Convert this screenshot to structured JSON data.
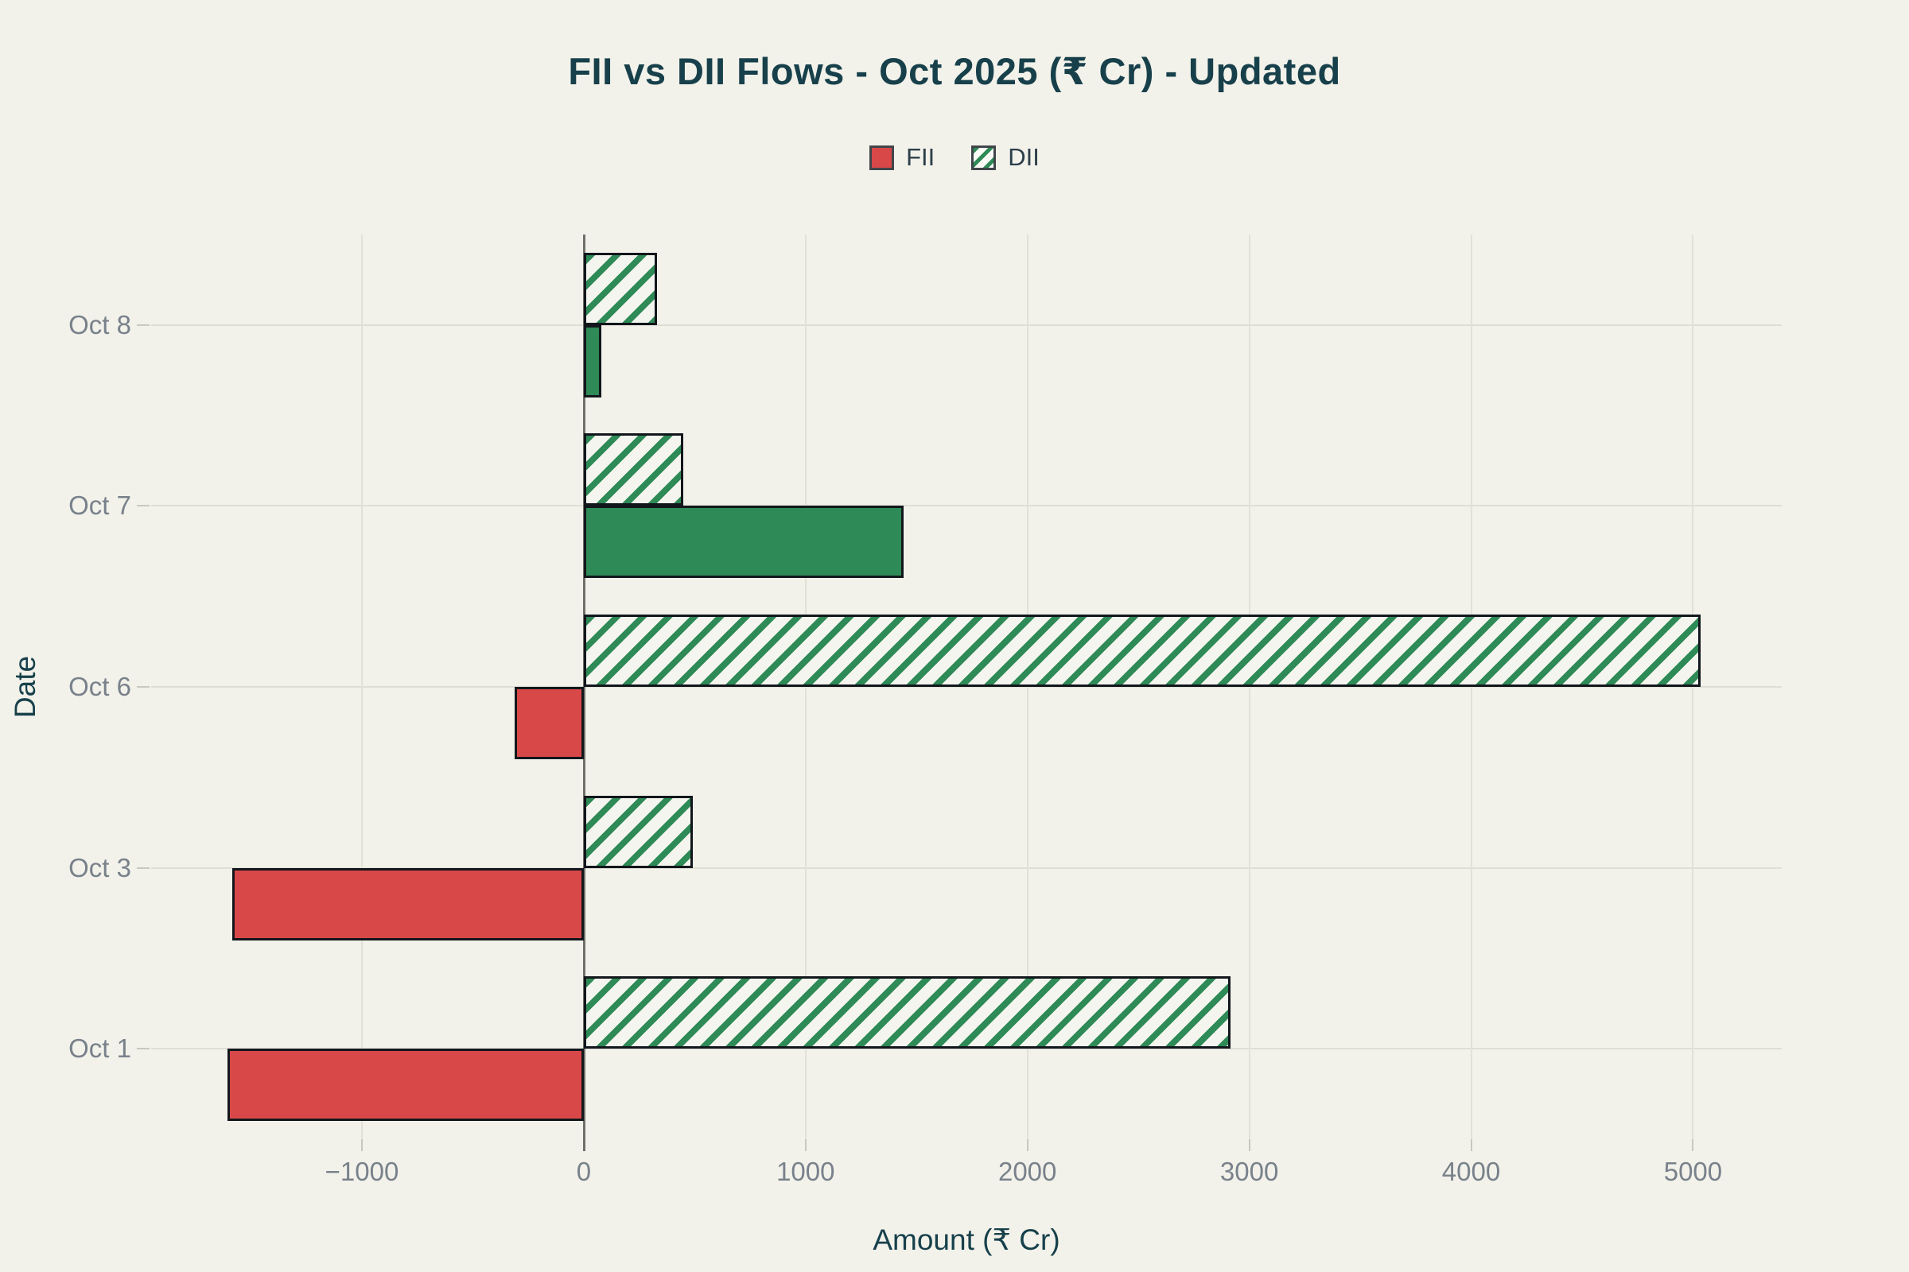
{
  "header": {
    "title": "FII vs DII Flows - Oct 2025 (₹ Cr) - Updated"
  },
  "chart_data": {
    "type": "bar",
    "orientation": "horizontal",
    "title": "FII vs DII Flows - Oct 2025 (₹ Cr) - Updated",
    "xlabel": "Amount (₹ Cr)",
    "ylabel": "Date",
    "categories": [
      "Oct 1",
      "Oct 3",
      "Oct 6",
      "Oct 7",
      "Oct 8"
    ],
    "series": [
      {
        "name": "FII",
        "values": [
          -1605,
          -1585,
          -312,
          1440,
          80
        ]
      },
      {
        "name": "DII",
        "values": [
          2915,
          490,
          5035,
          450,
          330
        ]
      }
    ],
    "xticks": [
      -1000,
      0,
      1000,
      2000,
      3000,
      4000,
      5000
    ],
    "xlim": [
      -1950,
      5400
    ],
    "grid": true,
    "legend_position": "top-center",
    "style_notes": {
      "fii_negative_color": "#d94848",
      "fii_positive_color": "#2e8a56",
      "dii_hatch_color": "#2e8a56",
      "dii_hatch_pattern": "diagonal-stripes",
      "background_color": "#f2f2ea",
      "bar_border_color": "#12171c",
      "dii_bar_position": "above-category-line",
      "fii_bar_position": "below-category-line"
    }
  }
}
